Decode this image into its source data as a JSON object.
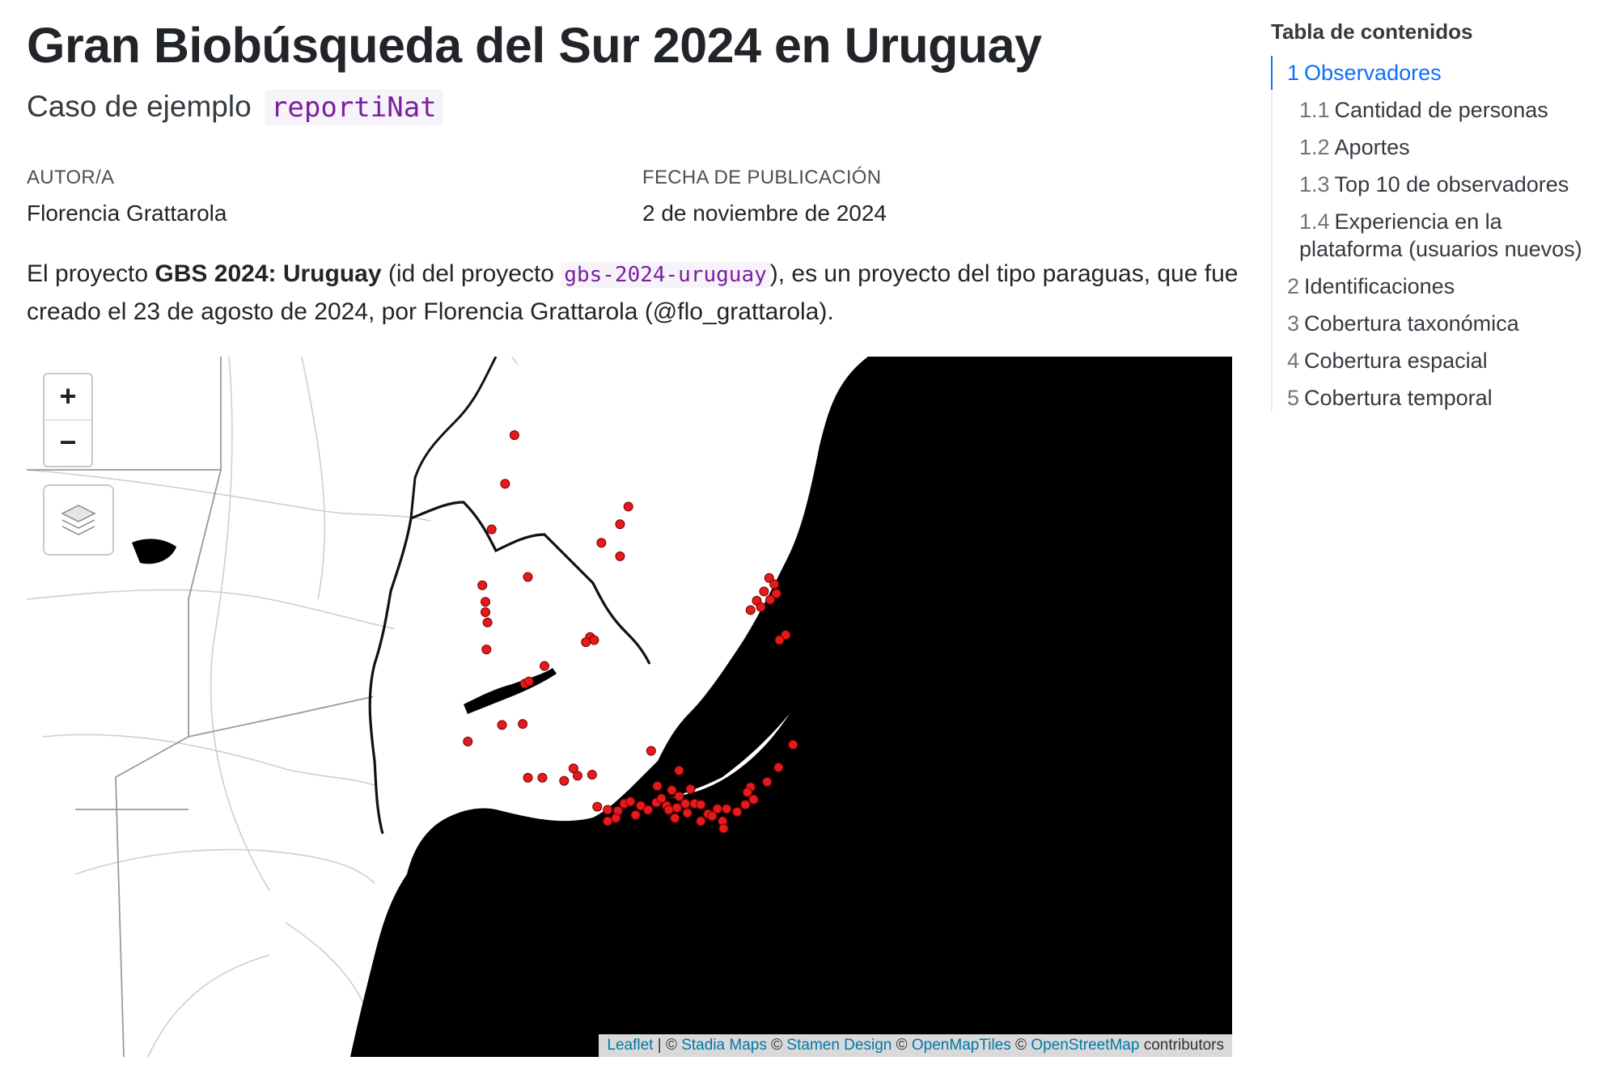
{
  "header": {
    "title": "Gran Biobúsqueda del Sur 2024 en Uruguay",
    "subtitle_prefix": "Caso de ejemplo",
    "subtitle_code": "reportiNat"
  },
  "meta": {
    "author_label": "AUTOR/A",
    "author": "Florencia Grattarola",
    "date_label": "FECHA DE PUBLICACIÓN",
    "date": "2 de noviembre de 2024"
  },
  "intro": {
    "t1": "El proyecto ",
    "project_name": "GBS 2024: Uruguay",
    "t2": " (id del proyecto ",
    "project_id": "gbs-2024-uruguay",
    "t3": "), es un proyecto del tipo paraguas, que fue creado el 23 de agosto de 2024, por Florencia Grattarola (@flo_grattarola)."
  },
  "map": {
    "zoom_in": "+",
    "zoom_out": "−",
    "layers_icon": "layers-icon",
    "point_color": "#e41a1c",
    "water_color": "#000000",
    "attribution": {
      "leaflet": "Leaflet",
      "sep1": " | © ",
      "stadia": "Stadia Maps",
      "sep2": " © ",
      "stamen": "Stamen Design",
      "sep3": " © ",
      "openmaptiles": "OpenMapTiles",
      "sep4": " © ",
      "osm": "OpenStreetMap",
      "tail": " contributors"
    }
  },
  "toc": {
    "title": "Tabla de contenidos",
    "items": [
      {
        "num": "1",
        "label": "Observadores",
        "active": true
      },
      {
        "num": "1.1",
        "label": "Cantidad de personas"
      },
      {
        "num": "1.2",
        "label": "Aportes"
      },
      {
        "num": "1.3",
        "label": "Top 10 de observadores"
      },
      {
        "num": "1.4",
        "label": "Experiencia en la plataforma (usuarios nuevos)"
      },
      {
        "num": "2",
        "label": "Identificaciones"
      },
      {
        "num": "3",
        "label": "Cobertura taxonómica"
      },
      {
        "num": "4",
        "label": "Cobertura espacial"
      },
      {
        "num": "5",
        "label": "Cobertura temporal"
      }
    ]
  }
}
